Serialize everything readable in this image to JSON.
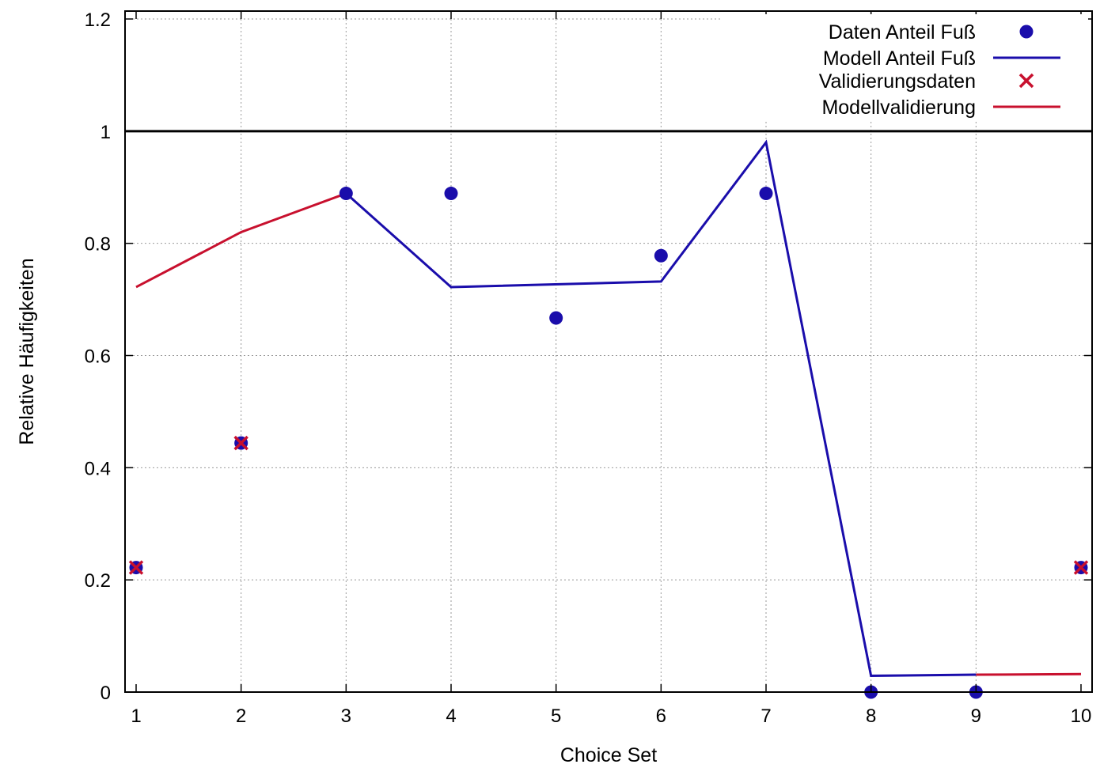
{
  "chart_data": {
    "type": "line",
    "title": "",
    "xlabel": "Choice Set",
    "ylabel": "Relative Häufigkeiten",
    "xlim": [
      1,
      10
    ],
    "ylim": [
      0,
      1.2
    ],
    "x_ticks": [
      1,
      2,
      3,
      4,
      5,
      6,
      7,
      8,
      9,
      10
    ],
    "y_ticks": [
      0,
      0.2,
      0.4,
      0.6,
      0.8,
      1,
      1.2
    ],
    "y_tick_labels": [
      "0",
      "0.2",
      "0.4",
      "0.6",
      "0.8",
      "1",
      "1.2"
    ],
    "grid": true,
    "legend_position": "top-right",
    "reference_line": {
      "y": 1
    },
    "series": [
      {
        "name": "Daten Anteil Fuß",
        "kind": "points",
        "marker": "circle",
        "color": "#1a0dab",
        "x": [
          1,
          2,
          3,
          4,
          5,
          6,
          7,
          8,
          9,
          10
        ],
        "y": [
          0.222,
          0.444,
          0.889,
          0.889,
          0.667,
          0.778,
          0.889,
          0.0,
          0.0,
          0.222
        ]
      },
      {
        "name": "Modell Anteil Fuß",
        "kind": "line",
        "color": "#1a0dab",
        "x": [
          3,
          4,
          6,
          7,
          8,
          9
        ],
        "y": [
          0.889,
          0.722,
          0.732,
          0.98,
          0.029,
          0.031
        ]
      },
      {
        "name": "Validierungsdaten",
        "kind": "points",
        "marker": "cross",
        "color": "#c8102e",
        "x": [
          1,
          2,
          10
        ],
        "y": [
          0.222,
          0.444,
          0.222
        ]
      },
      {
        "name": "Modellvalidierung",
        "kind": "line",
        "color": "#c8102e",
        "segments": [
          {
            "x": [
              1,
              2,
              3
            ],
            "y": [
              0.722,
              0.82,
              0.889
            ]
          },
          {
            "x": [
              9,
              10
            ],
            "y": [
              0.031,
              0.032
            ]
          }
        ]
      }
    ]
  }
}
